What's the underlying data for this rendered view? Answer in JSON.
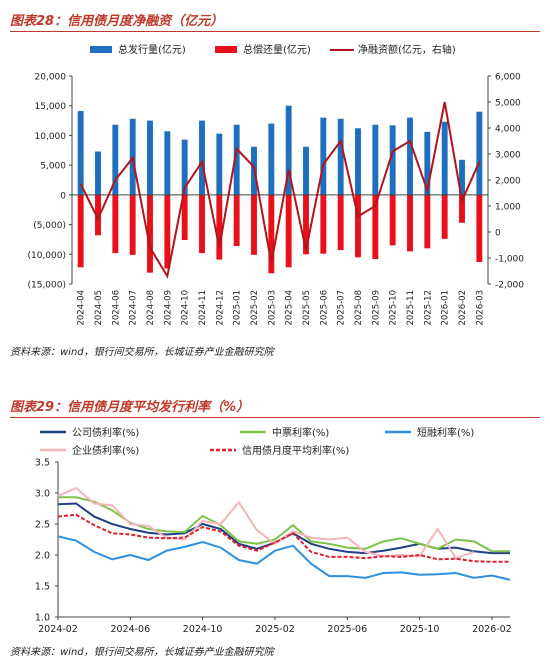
{
  "figure1": {
    "title": "图表28：信用债月度净融资（亿元）",
    "source": "资料来源：wind，银行间交易所，长城证券产业金融研究院"
  },
  "figure2": {
    "title": "图表29：信用债月度平均发行利率（%）",
    "source": "资料来源：wind，银行间交易所，长城证券产业金融研究院"
  },
  "colors": {
    "title_red": "#c0392b",
    "issue_blue": "#1f6fbf",
    "repay_red": "#e8111b",
    "net_darkred": "#b3141b",
    "corp_navy": "#1f3f86",
    "mtn_green": "#7cc348",
    "stf_blue": "#2f8fe0",
    "ent_pink": "#f4b6ba",
    "avg_red": "#e0202a"
  },
  "chart_data": [
    {
      "type": "bar",
      "title": "",
      "categories": [
        "2024-04",
        "2024-05",
        "2024-06",
        "2024-07",
        "2024-08",
        "2024-09",
        "2024-10",
        "2024-11",
        "2024-12",
        "2025-01",
        "2025-02",
        "2025-03",
        "2025-04",
        "2025-05",
        "2025-06",
        "2025-07",
        "2025-08",
        "2025-09",
        "2025-10",
        "2025-11",
        "2025-12",
        "2026-01",
        "2026-02",
        "2026-03"
      ],
      "series": [
        {
          "name": "总发行量(亿元)",
          "kind": "bar",
          "axis": "left",
          "values": [
            14100,
            7300,
            11800,
            12800,
            12500,
            10700,
            9300,
            12500,
            10300,
            11800,
            8100,
            12000,
            15000,
            8100,
            13000,
            12800,
            11200,
            11800,
            11700,
            13000,
            10600,
            12300,
            5900,
            14000
          ]
        },
        {
          "name": "总偿还量(亿元)",
          "kind": "bar",
          "axis": "left",
          "values": [
            -12200,
            -6800,
            -9800,
            -10100,
            -13100,
            -12400,
            -7600,
            -9800,
            -10900,
            -8600,
            -10100,
            -13200,
            -12200,
            -10000,
            -9900,
            -9300,
            -10500,
            -10800,
            -8500,
            -9500,
            -9000,
            -7400,
            -4700,
            -11300
          ]
        },
        {
          "name": "净融资额(亿元，右轴)",
          "kind": "line",
          "axis": "right",
          "values": [
            1850,
            500,
            2000,
            2850,
            -600,
            -1700,
            1700,
            2700,
            -600,
            3200,
            2500,
            -1200,
            2400,
            -700,
            2600,
            3500,
            600,
            1000,
            3100,
            3500,
            1600,
            5000,
            1200,
            2700
          ]
        }
      ],
      "xlabel": "",
      "ylabel": "",
      "ylim": [
        -15000,
        20000
      ],
      "yticks": [
        "20,000",
        "15,000",
        "10,000",
        "5,000",
        "0",
        "(5,000)",
        "(10,000)",
        "(15,000)"
      ],
      "ylim_right": [
        -2000,
        6000
      ],
      "yticks_right": [
        "6,000",
        "5,000",
        "4,000",
        "3,000",
        "2,000",
        "1,000",
        "0",
        "-1,000",
        "-2,000"
      ],
      "legend": "top"
    },
    {
      "type": "line",
      "title": "",
      "x": [
        "2024-02",
        "2024-03",
        "2024-04",
        "2024-05",
        "2024-06",
        "2024-07",
        "2024-08",
        "2024-09",
        "2024-10",
        "2024-11",
        "2024-12",
        "2025-01",
        "2025-02",
        "2025-03",
        "2025-04",
        "2025-05",
        "2025-06",
        "2025-07",
        "2025-08",
        "2025-09",
        "2025-10",
        "2025-11",
        "2025-12",
        "2026-01",
        "2026-02",
        "2026-03"
      ],
      "xticks": [
        "2024-02",
        "2024-06",
        "2024-10",
        "2025-02",
        "2025-06",
        "2025-10",
        "2026-02"
      ],
      "series": [
        {
          "name": "公司债利率(%)",
          "values": [
            2.82,
            2.83,
            2.62,
            2.5,
            2.42,
            2.36,
            2.33,
            2.35,
            2.5,
            2.42,
            2.18,
            2.1,
            2.2,
            2.35,
            2.18,
            2.1,
            2.05,
            2.03,
            2.07,
            2.12,
            2.18,
            2.1,
            2.12,
            2.06,
            2.03,
            2.03
          ]
        },
        {
          "name": "中票利率(%)",
          "values": [
            2.93,
            2.93,
            2.86,
            2.72,
            2.52,
            2.42,
            2.38,
            2.37,
            2.63,
            2.48,
            2.22,
            2.18,
            2.25,
            2.48,
            2.22,
            2.18,
            2.12,
            2.1,
            2.22,
            2.27,
            2.18,
            2.1,
            2.25,
            2.22,
            2.06,
            2.06
          ]
        },
        {
          "name": "短融利率(%)",
          "values": [
            2.3,
            2.23,
            2.05,
            1.93,
            2.0,
            1.92,
            2.07,
            2.13,
            2.21,
            2.12,
            1.92,
            1.86,
            2.07,
            2.15,
            1.86,
            1.66,
            1.66,
            1.63,
            1.71,
            1.72,
            1.68,
            1.69,
            1.71,
            1.63,
            1.67,
            1.6
          ]
        },
        {
          "name": "企业债利率(%)",
          "values": [
            2.95,
            3.08,
            2.83,
            2.8,
            2.5,
            2.47,
            2.28,
            2.25,
            2.55,
            2.5,
            2.85,
            2.4,
            2.18,
            2.38,
            2.28,
            2.25,
            2.28,
            2.05,
            1.98,
            2.0,
            1.98,
            2.42,
            1.95,
            2.05,
            null,
            null
          ]
        },
        {
          "name": "信用债月度平均利率(%)",
          "dashed": true,
          "values": [
            2.62,
            2.65,
            2.48,
            2.35,
            2.33,
            2.28,
            2.27,
            2.28,
            2.45,
            2.38,
            2.15,
            2.07,
            2.2,
            2.35,
            2.05,
            1.97,
            1.97,
            1.95,
            1.98,
            1.97,
            2.0,
            1.93,
            1.94,
            1.9,
            1.89,
            1.89
          ]
        }
      ],
      "xlabel": "",
      "ylabel": "",
      "ylim": [
        1.0,
        3.5
      ],
      "yticks": [
        "3.5",
        "3.0",
        "2.5",
        "2.0",
        "1.5",
        "1.0"
      ],
      "legend": "top"
    }
  ]
}
